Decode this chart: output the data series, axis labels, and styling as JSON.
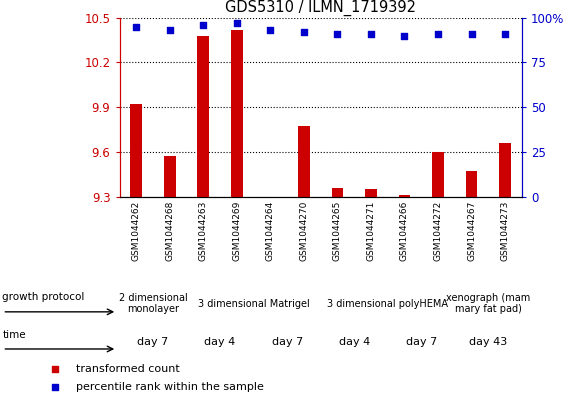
{
  "title": "GDS5310 / ILMN_1719392",
  "samples": [
    "GSM1044262",
    "GSM1044268",
    "GSM1044263",
    "GSM1044269",
    "GSM1044264",
    "GSM1044270",
    "GSM1044265",
    "GSM1044271",
    "GSM1044266",
    "GSM1044272",
    "GSM1044267",
    "GSM1044273"
  ],
  "transformed_counts": [
    9.92,
    9.57,
    10.38,
    10.42,
    9.3,
    9.77,
    9.36,
    9.35,
    9.31,
    9.6,
    9.47,
    9.66
  ],
  "percentile_ranks": [
    95,
    93,
    96,
    97,
    93,
    92,
    91,
    91,
    90,
    91,
    91,
    91
  ],
  "bar_color": "#cc0000",
  "dot_color": "#0000cc",
  "ylim_left": [
    9.3,
    10.5
  ],
  "ylim_right": [
    0,
    100
  ],
  "yticks_left": [
    9.3,
    9.6,
    9.9,
    10.2,
    10.5
  ],
  "yticks_right": [
    0,
    25,
    50,
    75,
    100
  ],
  "growth_protocol_groups": [
    {
      "label": "2 dimensional\nmonolayer",
      "start": 0,
      "end": 2,
      "color": "#ccffcc"
    },
    {
      "label": "3 dimensional Matrigel",
      "start": 2,
      "end": 6,
      "color": "#66dd66"
    },
    {
      "label": "3 dimensional polyHEMA",
      "start": 6,
      "end": 10,
      "color": "#66dd66"
    },
    {
      "label": "xenograph (mam\nmary fat pad)",
      "start": 10,
      "end": 12,
      "color": "#ccffcc"
    }
  ],
  "time_groups": [
    {
      "label": "day 7",
      "start": 0,
      "end": 2,
      "color": "#ff99ff"
    },
    {
      "label": "day 4",
      "start": 2,
      "end": 4,
      "color": "#ff99ff"
    },
    {
      "label": "day 7",
      "start": 4,
      "end": 6,
      "color": "#ff99ff"
    },
    {
      "label": "day 4",
      "start": 6,
      "end": 8,
      "color": "#ff99ff"
    },
    {
      "label": "day 7",
      "start": 8,
      "end": 10,
      "color": "#ff99ff"
    },
    {
      "label": "day 43",
      "start": 10,
      "end": 12,
      "color": "#ff99ff"
    }
  ],
  "legend_items": [
    {
      "label": "transformed count",
      "color": "#cc0000"
    },
    {
      "label": "percentile rank within the sample",
      "color": "#0000cc"
    }
  ],
  "left_axis_color": "#cc0000",
  "right_axis_color": "#0000cc",
  "xtick_bg": "#d0d0d0"
}
